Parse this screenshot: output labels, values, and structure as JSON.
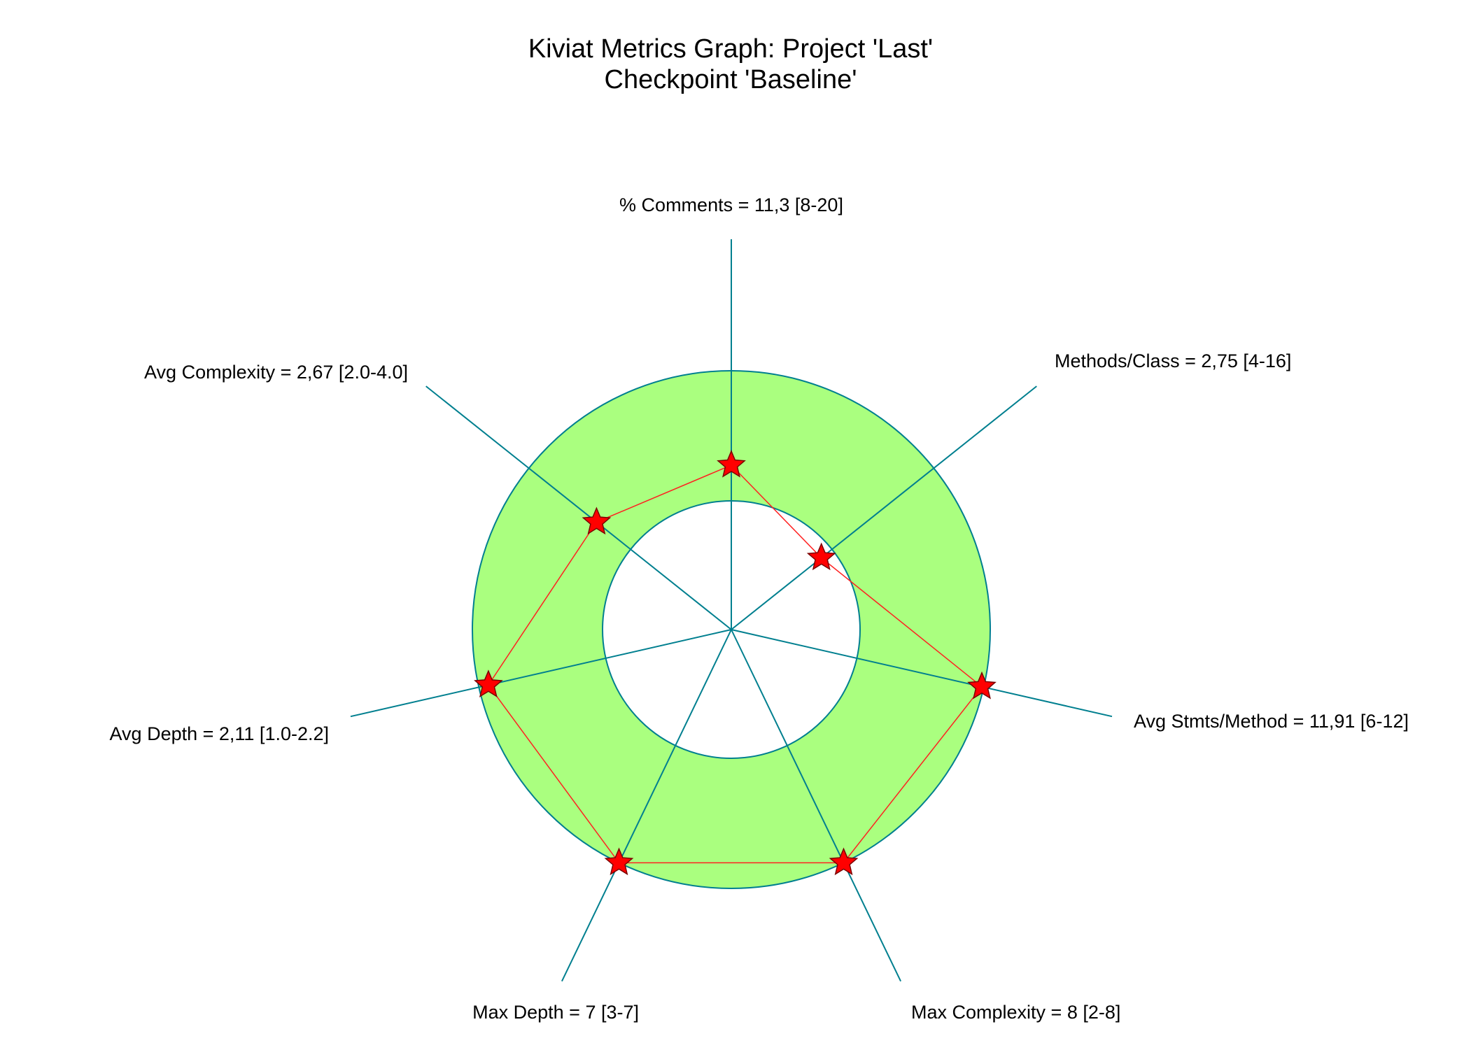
{
  "chart_data": {
    "type": "radar",
    "title": "Kiviat Metrics Graph: Project 'Last'",
    "subtitle": "Checkpoint 'Baseline'",
    "axes": [
      {
        "label": "% Comments = 11,3 [8-20]",
        "name": "% Comments",
        "value": 11.3,
        "range": [
          8,
          20
        ]
      },
      {
        "label": "Methods/Class = 2,75 [4-16]",
        "name": "Methods/Class",
        "value": 2.75,
        "range": [
          4,
          16
        ]
      },
      {
        "label": "Avg Stmts/Method = 11,91 [6-12]",
        "name": "Avg Stmts/Method",
        "value": 11.91,
        "range": [
          6,
          12
        ]
      },
      {
        "label": "Max Complexity = 8 [2-8]",
        "name": "Max Complexity",
        "value": 8,
        "range": [
          2,
          8
        ]
      },
      {
        "label": "Max Depth = 7 [3-7]",
        "name": "Max Depth",
        "value": 7,
        "range": [
          3,
          7
        ]
      },
      {
        "label": "Avg Depth = 2,11 [1.0-2.2]",
        "name": "Avg Depth",
        "value": 2.11,
        "range": [
          1.0,
          2.2
        ]
      },
      {
        "label": "Avg Complexity = 2,67 [2.0-4.0]",
        "name": "Avg Complexity",
        "value": 2.67,
        "range": [
          2.0,
          4.0
        ]
      }
    ],
    "colors": {
      "acceptable_band": "#aaff7f",
      "axis": "#007f8f",
      "polygon": "#ff2020",
      "marker": "#ff0000"
    }
  }
}
